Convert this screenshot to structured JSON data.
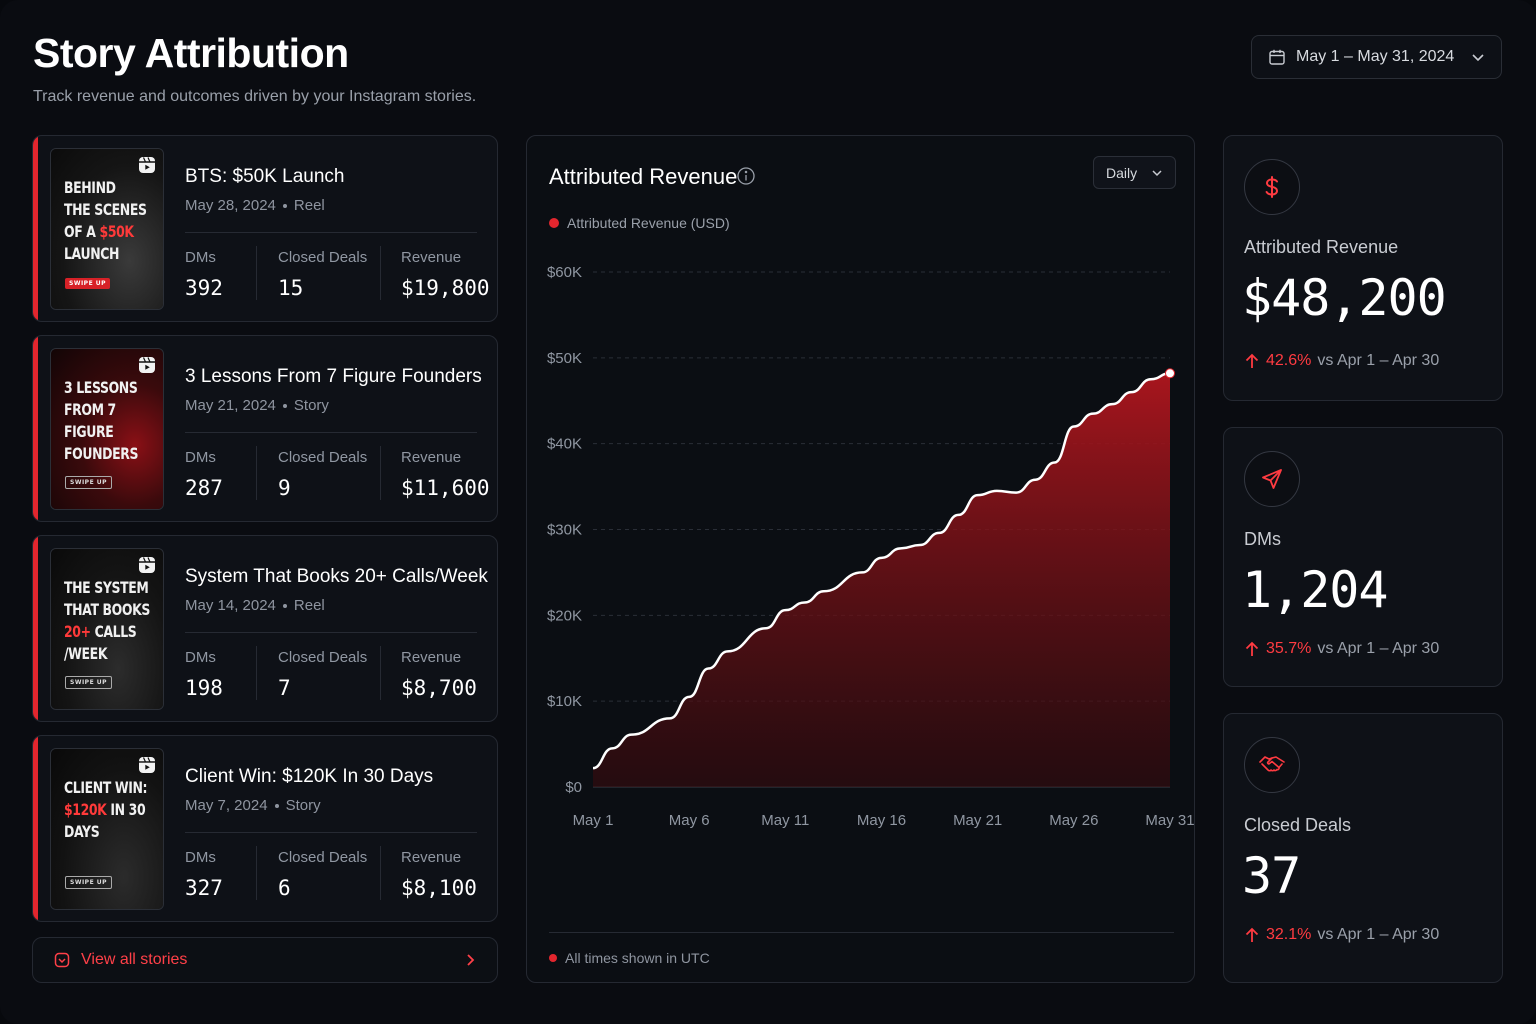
{
  "header": {
    "title": "Story Attribution",
    "subtitle": "Track revenue and outcomes driven by your Instagram stories.",
    "date_range": "May 1 – May 31, 2024"
  },
  "stories": [
    {
      "title": "BTS: $50K Launch",
      "date": "May 28, 2024",
      "type": "Reel",
      "thumb_lines": [
        "BEHIND",
        "THE SCENES",
        "OF A ",
        "$50K",
        "LAUNCH"
      ],
      "swipe": "SWIPE UP",
      "metrics": {
        "dms_label": "DMs",
        "dms": "392",
        "deals_label": "Closed Deals",
        "deals": "15",
        "revenue_label": "Revenue",
        "revenue": "$19,800"
      }
    },
    {
      "title": "3 Lessons From 7 Figure Founders",
      "date": "May 21, 2024",
      "type": "Story",
      "thumb_lines": [
        "3 LESSONS",
        "FROM 7 FIGURE",
        "FOUNDERS"
      ],
      "swipe": "SWIPE UP",
      "metrics": {
        "dms_label": "DMs",
        "dms": "287",
        "deals_label": "Closed Deals",
        "deals": "9",
        "revenue_label": "Revenue",
        "revenue": "$11,600"
      }
    },
    {
      "title": "System That Books 20+ Calls/Week",
      "date": "May 14, 2024",
      "type": "Reel",
      "thumb_lines": [
        "THE SYSTEM",
        "THAT BOOKS",
        "20+",
        " CALLS",
        "/WEEK"
      ],
      "swipe": "SWIPE UP",
      "metrics": {
        "dms_label": "DMs",
        "dms": "198",
        "deals_label": "Closed Deals",
        "deals": "7",
        "revenue_label": "Revenue",
        "revenue": "$8,700"
      }
    },
    {
      "title": "Client Win: $120K In 30 Days",
      "date": "May 7, 2024",
      "type": "Story",
      "thumb_lines": [
        "CLIENT WIN:",
        "$120K",
        " IN 30",
        "DAYS"
      ],
      "swipe": "SWIPE UP",
      "metrics": {
        "dms_label": "DMs",
        "dms": "327",
        "deals_label": "Closed Deals",
        "deals": "6",
        "revenue_label": "Revenue",
        "revenue": "$8,100"
      }
    }
  ],
  "view_all": "View all stories",
  "chart_panel": {
    "title": "Attributed Revenue",
    "granularity": "Daily",
    "footer": "All times shown in UTC"
  },
  "chart_data": {
    "type": "area",
    "title": "Attributed Revenue",
    "series": [
      {
        "name": "Attributed Revenue (USD)",
        "color": "#e3262e",
        "values": [
          2200,
          4500,
          6100,
          8000,
          10500,
          13800,
          15800,
          18500,
          20600,
          21500,
          22800,
          25000,
          26700,
          27800,
          28200,
          29600,
          31700,
          34000,
          34500,
          34300,
          35800,
          37800,
          42000,
          43500,
          44600,
          46000,
          47500,
          48200
        ]
      }
    ],
    "x": [
      "May 1",
      "May 2",
      "May 3",
      "May 5",
      "May 6",
      "May 7",
      "May 8",
      "May 10",
      "May 11",
      "May 12",
      "May 13",
      "May 15",
      "May 16",
      "May 17",
      "May 18",
      "May 19",
      "May 20",
      "May 21",
      "May 22",
      "May 23",
      "May 24",
      "May 25",
      "May 26",
      "May 27",
      "May 28",
      "May 29",
      "May 30",
      "May 31"
    ],
    "x_ticks": [
      "May 1",
      "May 6",
      "May 11",
      "May 16",
      "May 21",
      "May 26",
      "May 31"
    ],
    "y_ticks": [
      "$0",
      "$10K",
      "$20K",
      "$30K",
      "$40K",
      "$50K",
      "$60K"
    ],
    "ylim": [
      0,
      60000
    ],
    "grid": true,
    "legend_position": "top-left"
  },
  "kpis": [
    {
      "icon": "dollar-icon",
      "label": "Attributed Revenue",
      "value": "$48,200",
      "change": "42.6%",
      "compare": "vs Apr 1 – Apr 30"
    },
    {
      "icon": "send-icon",
      "label": "DMs",
      "value": "1,204",
      "change": "35.7%",
      "compare": "vs Apr 1 – Apr 30"
    },
    {
      "icon": "handshake-icon",
      "label": "Closed Deals",
      "value": "37",
      "change": "32.1%",
      "compare": "vs Apr 1 – Apr 30"
    }
  ],
  "colors": {
    "accent": "#e3262e",
    "background": "#0a0c11",
    "card": "#0e1117"
  }
}
